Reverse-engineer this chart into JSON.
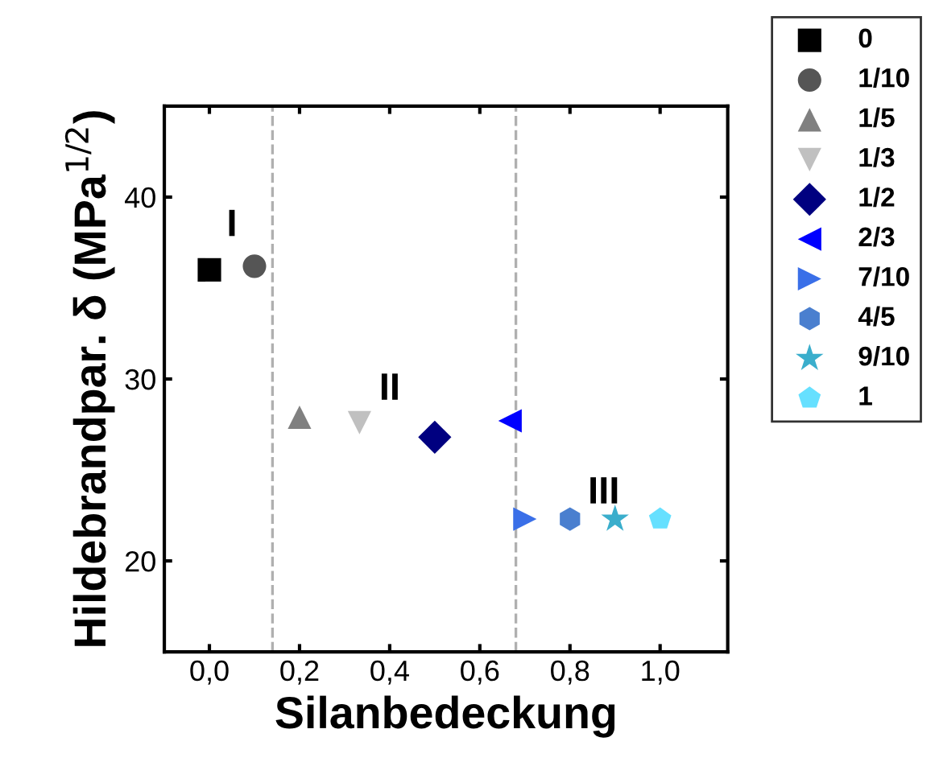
{
  "chart_data": {
    "type": "scatter",
    "xlabel": "Silanbedeckung",
    "ylabel": "Hildebrandpar. δ (MPa$^{1/2}$)",
    "xlim": [
      -0.1,
      1.15
    ],
    "ylim": [
      15,
      45
    ],
    "xticks": [
      {
        "value": 0,
        "label": "0,0"
      },
      {
        "value": 0.2,
        "label": "0,2"
      },
      {
        "value": 0.4,
        "label": "0,4"
      },
      {
        "value": 0.6,
        "label": "0,6"
      },
      {
        "value": 0.8,
        "label": "0,8"
      },
      {
        "value": 1.0,
        "label": "1,0"
      }
    ],
    "yticks": [
      20,
      30,
      40
    ],
    "grid": false,
    "legend": "top right",
    "series": [
      {
        "name": "0",
        "color": "#000000",
        "marker": "square",
        "x": [
          0
        ],
        "values": [
          36.0
        ]
      },
      {
        "name": "1/10",
        "color": "#555555",
        "marker": "circle",
        "x": [
          0.1
        ],
        "values": [
          36.2
        ]
      },
      {
        "name": "1/5",
        "color": "#808080",
        "marker": "triangle",
        "x": [
          0.2
        ],
        "values": [
          27.9
        ]
      },
      {
        "name": "1/3",
        "color": "#c0c0c0",
        "marker": "triangle_down",
        "x": [
          0.333
        ],
        "values": [
          27.6
        ]
      },
      {
        "name": "1/2",
        "color": "#000080",
        "marker": "diamond",
        "x": [
          0.5
        ],
        "values": [
          26.8
        ]
      },
      {
        "name": "2/3",
        "color": "#0000ff",
        "marker": "triangle_left",
        "x": [
          0.667
        ],
        "values": [
          27.7
        ]
      },
      {
        "name": "7/10",
        "color": "#3a6fe8",
        "marker": "triangle_right",
        "x": [
          0.7
        ],
        "values": [
          22.3
        ]
      },
      {
        "name": "4/5",
        "color": "#4a7fcf",
        "x": [
          0.8
        ],
        "values": [
          22.3
        ]
      },
      {
        "name": "9/10",
        "color": "#3aaecc",
        "marker": "star",
        "x": [
          0.9
        ],
        "values": [
          22.3
        ]
      },
      {
        "name": "1",
        "color": "#66e0ff",
        "x": [
          1.0
        ],
        "values": [
          22.3
        ]
      }
    ],
    "ref_lines": [
      {
        "axis": "x",
        "value": 0.14,
        "color": "#b0b0b0",
        "line_style": "dashed"
      },
      {
        "axis": "x",
        "value": 0.68,
        "color": "#b0b0b0",
        "line_style": "dashed"
      }
    ],
    "annotations": [
      "I",
      "II",
      "III"
    ]
  }
}
